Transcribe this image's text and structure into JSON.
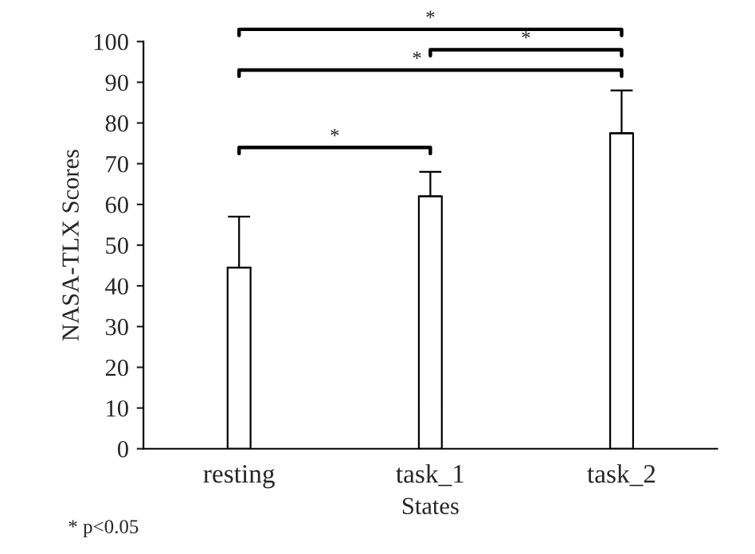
{
  "chart_data": {
    "type": "bar",
    "xlabel": "States",
    "ylabel": "NASA-TLX Scores",
    "categories": [
      "resting",
      "task_1",
      "task_2"
    ],
    "values": [
      44.5,
      62,
      77.5
    ],
    "errors": [
      [
        44.5,
        57
      ],
      [
        62,
        68
      ],
      [
        77.5,
        88
      ]
    ],
    "color": "#ffffff",
    "ylim": [
      0,
      100
    ],
    "yticks": [
      0,
      10,
      20,
      30,
      40,
      50,
      60,
      70,
      80,
      90,
      100
    ],
    "grid": false,
    "annotations": [
      "*",
      "*",
      "*",
      "*",
      "* p<0.05"
    ]
  }
}
